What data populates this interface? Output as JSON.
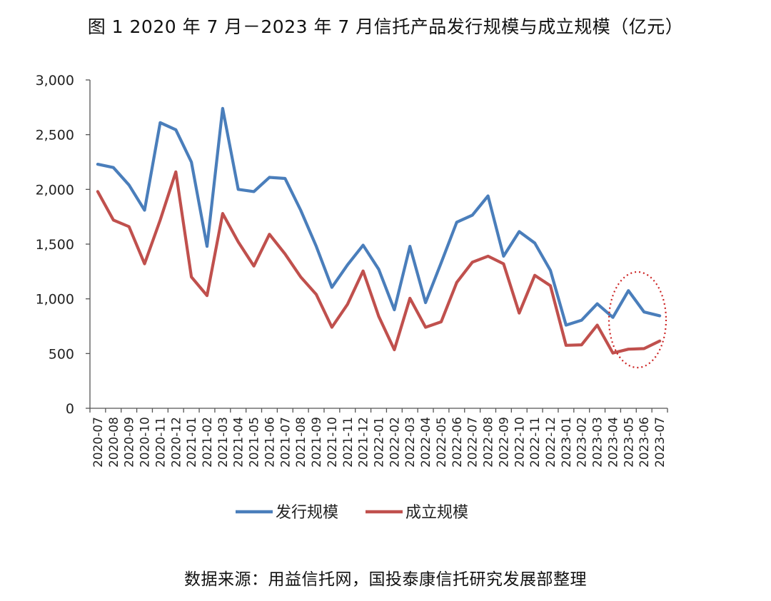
{
  "chart_data": {
    "type": "line",
    "title": "图 1 2020 年 7 月－2023 年 7 月信托产品发行规模与成立规模（亿元）",
    "source_note": "数据来源：用益信托网，国投泰康信托研究发展部整理",
    "x": [
      "2020-07",
      "2020-08",
      "2020-09",
      "2020-10",
      "2020-11",
      "2020-12",
      "2021-01",
      "2021-02",
      "2021-03",
      "2021-04",
      "2021-05",
      "2021-06",
      "2021-07",
      "2021-08",
      "2021-09",
      "2021-10",
      "2021-11",
      "2021-12",
      "2022-01",
      "2022-02",
      "2022-03",
      "2022-04",
      "2022-05",
      "2022-06",
      "2022-07",
      "2022-08",
      "2022-09",
      "2022-10",
      "2022-11",
      "2022-12",
      "2023-01",
      "2023-02",
      "2023-03",
      "2023-04",
      "2023-05",
      "2023-06",
      "2023-07"
    ],
    "series": [
      {
        "name": "发行规模",
        "color": "#4a7ebb",
        "values": [
          2230,
          2200,
          2040,
          1810,
          2610,
          2545,
          2250,
          1480,
          2740,
          2000,
          1980,
          2110,
          2100,
          1810,
          1480,
          1105,
          1310,
          1490,
          1270,
          900,
          1480,
          965,
          1330,
          1700,
          1765,
          1940,
          1390,
          1615,
          1510,
          1260,
          760,
          805,
          955,
          830,
          1075,
          880,
          845
        ]
      },
      {
        "name": "成立规模",
        "color": "#c0504d",
        "values": [
          1980,
          1720,
          1660,
          1320,
          1720,
          2160,
          1200,
          1030,
          1780,
          1520,
          1300,
          1590,
          1410,
          1200,
          1040,
          740,
          950,
          1255,
          840,
          535,
          1005,
          740,
          790,
          1150,
          1335,
          1390,
          1320,
          870,
          1215,
          1120,
          575,
          580,
          760,
          505,
          540,
          545,
          615
        ]
      }
    ],
    "ylim": [
      0,
      3000
    ],
    "yticks": [
      0,
      500,
      1000,
      1500,
      2000,
      2500,
      3000
    ],
    "ytick_labels": [
      "0",
      "500",
      "1,000",
      "1,500",
      "2,000",
      "2,500",
      "3,000"
    ],
    "legend_position": "bottom",
    "annotation": "red dotted ellipse highlighting 2023-04 to 2023-07",
    "grid": false
  }
}
